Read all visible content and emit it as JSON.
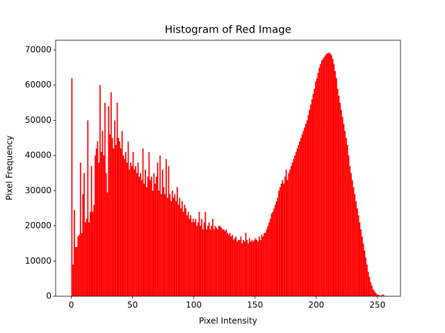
{
  "chart_data": {
    "type": "histogram",
    "title": "Histogram of Red Image",
    "x_label": "Pixel Intensity",
    "y_label": "Pixel Frequency",
    "color": "#ff0000",
    "bins": [
      0,
      1,
      2,
      3,
      4,
      5,
      6,
      7,
      8,
      9,
      10,
      11,
      12,
      13,
      14,
      15,
      16,
      17,
      18,
      19,
      20,
      21,
      22,
      23,
      24,
      25,
      26,
      27,
      28,
      29,
      30,
      31,
      32,
      33,
      34,
      35,
      36,
      37,
      38,
      39,
      40,
      41,
      42,
      43,
      44,
      45,
      46,
      47,
      48,
      49,
      50,
      51,
      52,
      53,
      54,
      55,
      56,
      57,
      58,
      59,
      60,
      61,
      62,
      63,
      64,
      65,
      66,
      67,
      68,
      69,
      70,
      71,
      72,
      73,
      74,
      75,
      76,
      77,
      78,
      79,
      80,
      81,
      82,
      83,
      84,
      85,
      86,
      87,
      88,
      89,
      90,
      91,
      92,
      93,
      94,
      95,
      96,
      97,
      98,
      99,
      100,
      101,
      102,
      103,
      104,
      105,
      106,
      107,
      108,
      109,
      110,
      111,
      112,
      113,
      114,
      115,
      116,
      117,
      118,
      119,
      120,
      121,
      122,
      123,
      124,
      125,
      126,
      127,
      128,
      129,
      130,
      131,
      132,
      133,
      134,
      135,
      136,
      137,
      138,
      139,
      140,
      141,
      142,
      143,
      144,
      145,
      146,
      147,
      148,
      149,
      150,
      151,
      152,
      153,
      154,
      155,
      156,
      157,
      158,
      159,
      160,
      161,
      162,
      163,
      164,
      165,
      166,
      167,
      168,
      169,
      170,
      171,
      172,
      173,
      174,
      175,
      176,
      177,
      178,
      179,
      180,
      181,
      182,
      183,
      184,
      185,
      186,
      187,
      188,
      189,
      190,
      191,
      192,
      193,
      194,
      195,
      196,
      197,
      198,
      199,
      200,
      201,
      202,
      203,
      204,
      205,
      206,
      207,
      208,
      209,
      210,
      211,
      212,
      213,
      214,
      215,
      216,
      217,
      218,
      219,
      220,
      221,
      222,
      223,
      224,
      225,
      226,
      227,
      228,
      229,
      230,
      231,
      232,
      233,
      234,
      235,
      236,
      237,
      238,
      239,
      240,
      241,
      242,
      243,
      244,
      245,
      246,
      247,
      248,
      249,
      250,
      251,
      252,
      253,
      254,
      255,
      256
    ],
    "values": [
      62000,
      9000,
      24500,
      14000,
      14000,
      17000,
      17500,
      38000,
      18000,
      29000,
      35000,
      21000,
      22000,
      50000,
      21000,
      24000,
      37000,
      24000,
      26000,
      40000,
      42000,
      44000,
      38000,
      60000,
      41000,
      47000,
      40000,
      55000,
      35000,
      29500,
      54000,
      46000,
      58000,
      45000,
      42000,
      50000,
      43000,
      55000,
      45000,
      44000,
      42000,
      47000,
      40000,
      39000,
      41000,
      38000,
      44000,
      36000,
      38000,
      37000,
      41000,
      36000,
      37000,
      35000,
      38000,
      34000,
      35000,
      33000,
      42000,
      32000,
      36000,
      31000,
      34000,
      41000,
      33000,
      34000,
      30000,
      35000,
      32000,
      34000,
      38000,
      30000,
      40000,
      29000,
      36000,
      31000,
      29000,
      39000,
      28000,
      37000,
      29000,
      27000,
      30000,
      28000,
      29000,
      27000,
      31000,
      26000,
      28000,
      25000,
      27000,
      24000,
      26000,
      25000,
      23000,
      24000,
      22000,
      23000,
      21000,
      22000,
      21000,
      22000,
      20000,
      21000,
      24000,
      20000,
      22000,
      19000,
      21000,
      24000,
      19000,
      20000,
      21000,
      19000,
      20000,
      22000,
      19000,
      20000,
      19500,
      19000,
      20000,
      20000,
      19500,
      19000,
      19000,
      18500,
      19000,
      18000,
      17500,
      18000,
      17000,
      17500,
      16000,
      16500,
      17000,
      15500,
      16000,
      16000,
      17000,
      15000,
      16000,
      15500,
      18000,
      16000,
      15000,
      16500,
      15500,
      16000,
      15500,
      16000,
      16500,
      16000,
      15500,
      17000,
      16000,
      17500,
      17000,
      18000,
      18000,
      19000,
      20000,
      21000,
      22000,
      23500,
      24000,
      25000,
      26000,
      27000,
      28000,
      30000,
      31000,
      32000,
      33000,
      32000,
      34000,
      36000,
      33000,
      35000,
      36000,
      37000,
      38000,
      39000,
      40000,
      41000,
      42000,
      43000,
      44000,
      45000,
      46000,
      47000,
      48000,
      49000,
      50000,
      51500,
      53000,
      54500,
      56000,
      57500,
      59000,
      61000,
      62000,
      63500,
      65000,
      66000,
      67000,
      67500,
      68000,
      68500,
      69000,
      69000,
      69300,
      69000,
      68500,
      67500,
      66000,
      64000,
      62000,
      59000,
      57000,
      55000,
      53000,
      51000,
      49000,
      47000,
      45000,
      43000,
      40000,
      37000,
      35000,
      33000,
      31000,
      29000,
      27000,
      25000,
      23000,
      21000,
      19000,
      17000,
      15000,
      13000,
      11000,
      9000,
      7000,
      5500,
      4000,
      3000,
      2000,
      1500,
      1000,
      600,
      400,
      300,
      200,
      300,
      500,
      200
    ],
    "xlim": [
      -12.8,
      268.8
    ],
    "xticks": [
      0,
      50,
      100,
      150,
      200,
      250
    ],
    "ylim": [
      0,
      72765
    ],
    "yticks": [
      0,
      10000,
      20000,
      30000,
      40000,
      50000,
      60000,
      70000
    ]
  }
}
